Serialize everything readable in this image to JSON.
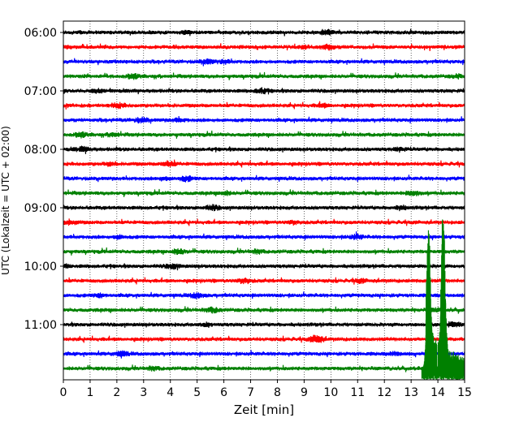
{
  "chart_data": {
    "type": "line",
    "subtype": "helicorder-seismogram",
    "title": "",
    "xlabel": "Zeit  [min]",
    "ylabel": "UTC (Lokalzeit = UTC + 02:00)",
    "xlim": [
      0,
      15
    ],
    "x_ticks": [
      "0",
      "1",
      "2",
      "3",
      "4",
      "5",
      "6",
      "7",
      "8",
      "9",
      "10",
      "11",
      "12",
      "13",
      "14",
      "15"
    ],
    "y_tick_labels": [
      "06:00",
      "07:00",
      "08:00",
      "09:00",
      "10:00",
      "11:00"
    ],
    "y_tick_rows": [
      0,
      4,
      8,
      12,
      16,
      20
    ],
    "grid": "vertical dotted lines at each minute",
    "row_count": 24,
    "row_start_times": [
      "06:00",
      "06:15",
      "06:30",
      "06:45",
      "07:00",
      "07:15",
      "07:30",
      "07:45",
      "08:00",
      "08:15",
      "08:30",
      "08:45",
      "09:00",
      "09:15",
      "09:30",
      "09:45",
      "10:00",
      "10:15",
      "10:30",
      "10:45",
      "11:00",
      "11:15",
      "11:30",
      "11:45"
    ],
    "row_colors": [
      "#000000",
      "#ff0000",
      "#0000ff",
      "#008000"
    ],
    "event": {
      "row": 23,
      "start_min": 13.4,
      "peaks": [
        {
          "min": 13.65,
          "rows_tall": 8.7
        },
        {
          "min": 14.2,
          "rows_tall": 10.2
        }
      ]
    }
  }
}
